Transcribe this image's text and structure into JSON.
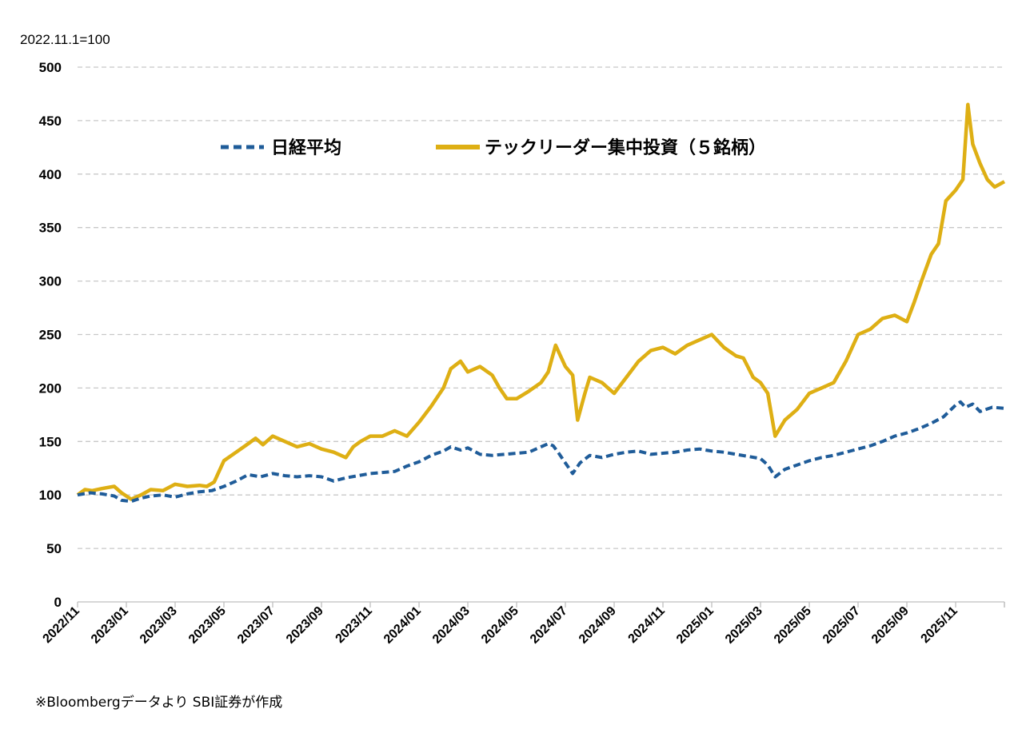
{
  "chart_data": {
    "type": "line",
    "unit_label": "2022.11.1=100",
    "source_note": "※Bloombergデータより SBI証券が作成",
    "ylim": [
      0,
      500
    ],
    "y_ticks": [
      "0",
      "50",
      "100",
      "150",
      "200",
      "250",
      "300",
      "350",
      "400",
      "450",
      "500"
    ],
    "x_ticks": [
      "2022/11",
      "2023/01",
      "2023/03",
      "2023/05",
      "2023/07",
      "2023/09",
      "2023/11",
      "2024/01",
      "2024/03",
      "2024/05",
      "2024/07",
      "2024/09",
      "2024/11",
      "2025/01",
      "2025/03",
      "2025/05",
      "2025/07",
      "2025/09",
      "2025/11"
    ],
    "grid": true,
    "legend_position": "top",
    "x_domain_months": [
      0,
      38
    ],
    "series": [
      {
        "name": "日経平均",
        "color": "#1F5C99",
        "style": "dashed",
        "points": [
          [
            0,
            100
          ],
          [
            0.5,
            102
          ],
          [
            1,
            101
          ],
          [
            1.5,
            99
          ],
          [
            1.8,
            95
          ],
          [
            2.2,
            94
          ],
          [
            2.6,
            97
          ],
          [
            3,
            99
          ],
          [
            3.5,
            100
          ],
          [
            4,
            98
          ],
          [
            4.5,
            101
          ],
          [
            5,
            103
          ],
          [
            5.5,
            104
          ],
          [
            6,
            108
          ],
          [
            6.5,
            113
          ],
          [
            7,
            119
          ],
          [
            7.5,
            117
          ],
          [
            8,
            120
          ],
          [
            8.5,
            118
          ],
          [
            9,
            117
          ],
          [
            9.5,
            118
          ],
          [
            10,
            117
          ],
          [
            10.5,
            113
          ],
          [
            11,
            116
          ],
          [
            11.5,
            118
          ],
          [
            12,
            120
          ],
          [
            12.5,
            121
          ],
          [
            13,
            122
          ],
          [
            13.5,
            127
          ],
          [
            14,
            131
          ],
          [
            14.5,
            137
          ],
          [
            15,
            141
          ],
          [
            15.3,
            145
          ],
          [
            15.7,
            142
          ],
          [
            16,
            144
          ],
          [
            16.5,
            138
          ],
          [
            17,
            137
          ],
          [
            17.5,
            138
          ],
          [
            18,
            139
          ],
          [
            18.5,
            140
          ],
          [
            19,
            145
          ],
          [
            19.3,
            148
          ],
          [
            19.5,
            146
          ],
          [
            19.7,
            140
          ],
          [
            20,
            130
          ],
          [
            20.3,
            120
          ],
          [
            20.6,
            130
          ],
          [
            21,
            137
          ],
          [
            21.5,
            135
          ],
          [
            22,
            138
          ],
          [
            22.5,
            140
          ],
          [
            23,
            141
          ],
          [
            23.5,
            138
          ],
          [
            24,
            139
          ],
          [
            24.5,
            140
          ],
          [
            25,
            142
          ],
          [
            25.5,
            143
          ],
          [
            26,
            141
          ],
          [
            26.5,
            140
          ],
          [
            27,
            138
          ],
          [
            27.5,
            136
          ],
          [
            28,
            134
          ],
          [
            28.3,
            128
          ],
          [
            28.6,
            117
          ],
          [
            29,
            124
          ],
          [
            29.5,
            128
          ],
          [
            30,
            132
          ],
          [
            30.5,
            135
          ],
          [
            31,
            137
          ],
          [
            31.5,
            140
          ],
          [
            32,
            143
          ],
          [
            32.5,
            146
          ],
          [
            33,
            150
          ],
          [
            33.5,
            155
          ],
          [
            34,
            158
          ],
          [
            34.5,
            162
          ],
          [
            35,
            167
          ],
          [
            35.5,
            173
          ],
          [
            36,
            184
          ],
          [
            36.2,
            187
          ],
          [
            36.4,
            182
          ],
          [
            36.7,
            185
          ],
          [
            37,
            178
          ],
          [
            37.5,
            182
          ],
          [
            38,
            181
          ]
        ]
      },
      {
        "name": "テックリーダー集中投資（５銘柄）",
        "color": "#DEAF14",
        "style": "solid",
        "points": [
          [
            0,
            100
          ],
          [
            0.3,
            105
          ],
          [
            0.6,
            104
          ],
          [
            1,
            106
          ],
          [
            1.5,
            108
          ],
          [
            1.8,
            102
          ],
          [
            2.2,
            96
          ],
          [
            2.6,
            100
          ],
          [
            3,
            105
          ],
          [
            3.5,
            104
          ],
          [
            4,
            110
          ],
          [
            4.5,
            108
          ],
          [
            5,
            109
          ],
          [
            5.3,
            108
          ],
          [
            5.6,
            112
          ],
          [
            6,
            132
          ],
          [
            6.5,
            140
          ],
          [
            7,
            148
          ],
          [
            7.3,
            153
          ],
          [
            7.6,
            147
          ],
          [
            8,
            155
          ],
          [
            8.5,
            150
          ],
          [
            9,
            145
          ],
          [
            9.5,
            148
          ],
          [
            10,
            143
          ],
          [
            10.5,
            140
          ],
          [
            11,
            135
          ],
          [
            11.3,
            145
          ],
          [
            11.6,
            150
          ],
          [
            12,
            155
          ],
          [
            12.5,
            155
          ],
          [
            13,
            160
          ],
          [
            13.5,
            155
          ],
          [
            14,
            168
          ],
          [
            14.5,
            183
          ],
          [
            15,
            200
          ],
          [
            15.3,
            218
          ],
          [
            15.7,
            225
          ],
          [
            16,
            215
          ],
          [
            16.5,
            220
          ],
          [
            17,
            212
          ],
          [
            17.3,
            200
          ],
          [
            17.6,
            190
          ],
          [
            18,
            190
          ],
          [
            18.5,
            197
          ],
          [
            19,
            205
          ],
          [
            19.3,
            215
          ],
          [
            19.6,
            240
          ],
          [
            19.8,
            230
          ],
          [
            20,
            220
          ],
          [
            20.3,
            212
          ],
          [
            20.5,
            170
          ],
          [
            20.8,
            195
          ],
          [
            21,
            210
          ],
          [
            21.5,
            205
          ],
          [
            22,
            195
          ],
          [
            22.5,
            210
          ],
          [
            23,
            225
          ],
          [
            23.5,
            235
          ],
          [
            24,
            238
          ],
          [
            24.5,
            232
          ],
          [
            25,
            240
          ],
          [
            25.5,
            245
          ],
          [
            26,
            250
          ],
          [
            26.5,
            238
          ],
          [
            27,
            230
          ],
          [
            27.3,
            228
          ],
          [
            27.7,
            210
          ],
          [
            28,
            205
          ],
          [
            28.3,
            195
          ],
          [
            28.6,
            155
          ],
          [
            29,
            170
          ],
          [
            29.5,
            180
          ],
          [
            30,
            195
          ],
          [
            30.5,
            200
          ],
          [
            31,
            205
          ],
          [
            31.5,
            225
          ],
          [
            32,
            250
          ],
          [
            32.5,
            255
          ],
          [
            33,
            265
          ],
          [
            33.5,
            268
          ],
          [
            34,
            262
          ],
          [
            34.3,
            280
          ],
          [
            34.6,
            300
          ],
          [
            35,
            325
          ],
          [
            35.3,
            335
          ],
          [
            35.6,
            375
          ],
          [
            36,
            385
          ],
          [
            36.3,
            395
          ],
          [
            36.5,
            465
          ],
          [
            36.7,
            428
          ],
          [
            37,
            410
          ],
          [
            37.3,
            395
          ],
          [
            37.6,
            388
          ],
          [
            38,
            393
          ]
        ]
      }
    ]
  }
}
